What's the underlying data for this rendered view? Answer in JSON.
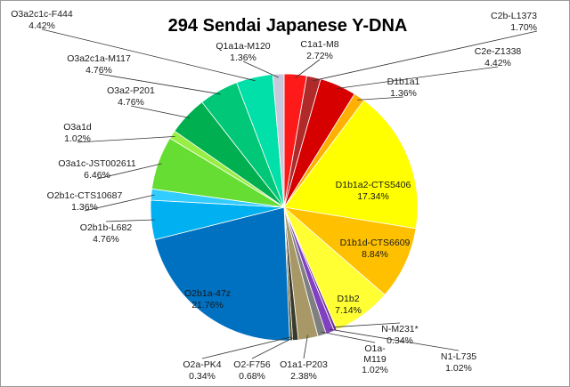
{
  "chart_data": {
    "type": "pie",
    "title": "294 Sendai Japanese Y-DNA",
    "slices": [
      {
        "name": "C1a1-M8",
        "pct_label": "2.72%",
        "value": 2.72,
        "color": "#ff1a1a"
      },
      {
        "name": "C2b-L1373",
        "pct_label": "1.70%",
        "value": 1.7,
        "color": "#b02a2a"
      },
      {
        "name": "C2e-Z1338",
        "pct_label": "4.42%",
        "value": 4.42,
        "color": "#d60000"
      },
      {
        "name": "D1b1a1",
        "pct_label": "1.36%",
        "value": 1.36,
        "color": "#ffb000"
      },
      {
        "name": "D1b1a2-CTS5406",
        "pct_label": "17.34%",
        "value": 17.34,
        "color": "#ffff00"
      },
      {
        "name": "D1b1d-CTS6609",
        "pct_label": "8.84%",
        "value": 8.84,
        "color": "#ffc000"
      },
      {
        "name": "D1b2",
        "pct_label": "7.14%",
        "value": 7.14,
        "color": "#ffff33"
      },
      {
        "name": "N-M231*",
        "pct_label": "0.34%",
        "value": 0.34,
        "color": "#7030a0"
      },
      {
        "name": "N1-L735",
        "pct_label": "1.02%",
        "value": 1.02,
        "color": "#8040c0"
      },
      {
        "name": "O1a-M119",
        "pct_label": "1.02%",
        "value": 1.02,
        "color": "#7f7f7f"
      },
      {
        "name": "O1a1-P203",
        "pct_label": "2.38%",
        "value": 2.38,
        "color": "#a89868"
      },
      {
        "name": "O2-F756",
        "pct_label": "0.68%",
        "value": 0.68,
        "color": "#3a3a2a"
      },
      {
        "name": "O2a-PK4",
        "pct_label": "0.34%",
        "value": 0.34,
        "color": "#505030"
      },
      {
        "name": "O2b1a-47z",
        "pct_label": "21.76%",
        "value": 21.76,
        "color": "#0070c0"
      },
      {
        "name": "O2b1b-L682",
        "pct_label": "4.76%",
        "value": 4.76,
        "color": "#00b0f0"
      },
      {
        "name": "O2b1c-CTS10687",
        "pct_label": "1.36%",
        "value": 1.36,
        "color": "#33ccff"
      },
      {
        "name": "O3a1c-JST002611",
        "pct_label": "6.46%",
        "value": 6.46,
        "color": "#66dd33"
      },
      {
        "name": "O3a1d",
        "pct_label": "1.02%",
        "value": 1.02,
        "color": "#99ee44"
      },
      {
        "name": "O3a2-P201",
        "pct_label": "4.76%",
        "value": 4.76,
        "color": "#00b050"
      },
      {
        "name": "O3a2c1a-M117",
        "pct_label": "4.76%",
        "value": 4.76,
        "color": "#00c878"
      },
      {
        "name": "O3a2c1c-F444",
        "pct_label": "4.42%",
        "value": 4.42,
        "color": "#00e0a8"
      },
      {
        "name": "Q1a1a-M120",
        "pct_label": "1.36%",
        "value": 1.36,
        "color": "#c8c8dc"
      }
    ]
  }
}
